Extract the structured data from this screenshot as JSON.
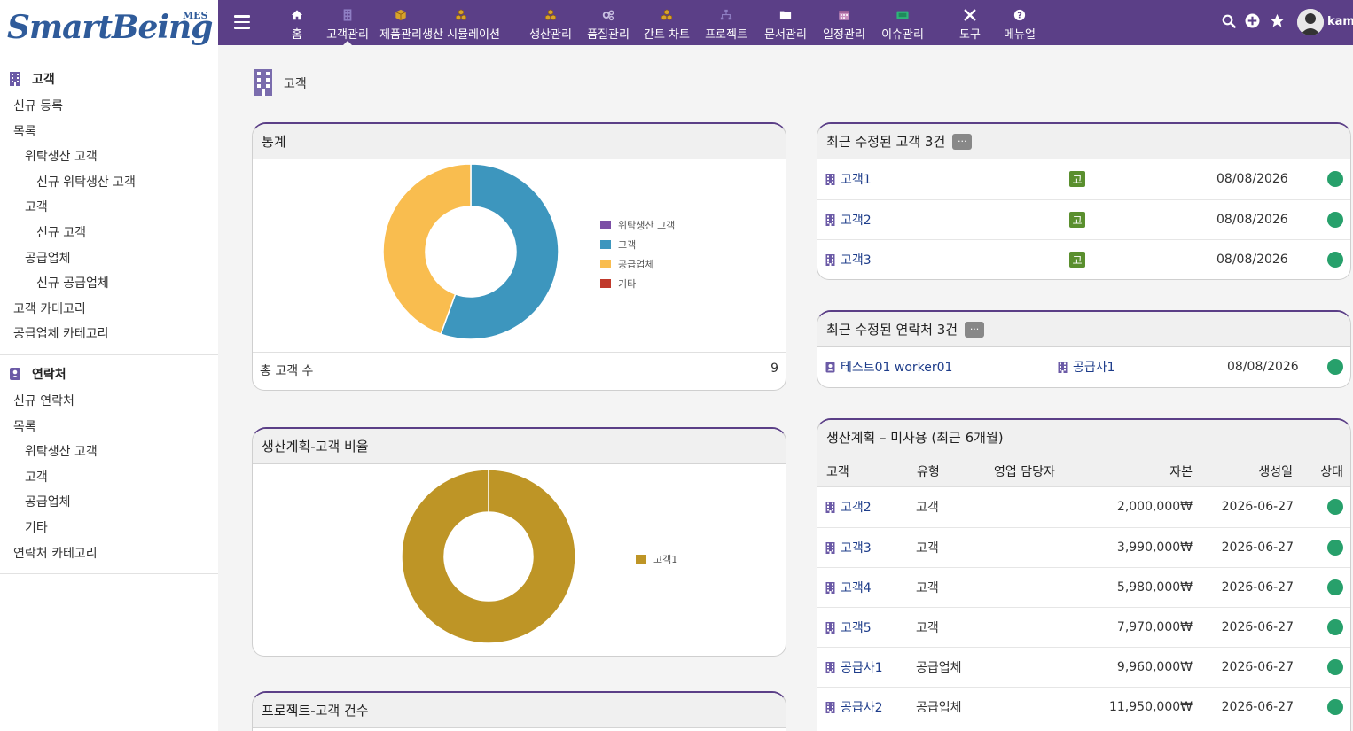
{
  "brand": {
    "logo": "SmartBeing",
    "sub": "MES"
  },
  "topnav": {
    "items": [
      {
        "label": "홈",
        "icon": "home-icon"
      },
      {
        "label": "고객관리",
        "icon": "building-icon"
      },
      {
        "label": "제품관리",
        "icon": "cube-icon"
      },
      {
        "label": "생산 시뮬레이션",
        "icon": "cubes-icon"
      },
      {
        "label": "생산관리",
        "icon": "cubes-icon"
      },
      {
        "label": "품질관리",
        "icon": "cogs-icon"
      },
      {
        "label": "간트 차트",
        "icon": "cubes-icon"
      },
      {
        "label": "프로젝트",
        "icon": "sitemap-icon"
      },
      {
        "label": "문서관리",
        "icon": "folder-icon"
      },
      {
        "label": "일정관리",
        "icon": "calendar-icon"
      },
      {
        "label": "이슈관리",
        "icon": "ticket-icon"
      },
      {
        "label": "도구",
        "icon": "wrench-icon"
      },
      {
        "label": "메뉴얼",
        "icon": "question-icon"
      }
    ],
    "active": "고객관리",
    "user": "kame"
  },
  "sidebar": {
    "customer_section": {
      "title": "고객",
      "items": [
        {
          "label": "신규 등록",
          "level": 0
        },
        {
          "label": "목록",
          "level": 0
        },
        {
          "label": "위탁생산 고객",
          "level": 1
        },
        {
          "label": "신규 위탁생산 고객",
          "level": 2
        },
        {
          "label": "고객",
          "level": 1
        },
        {
          "label": "신규 고객",
          "level": 2
        },
        {
          "label": "공급업체",
          "level": 1
        },
        {
          "label": "신규 공급업체",
          "level": 2
        },
        {
          "label": "고객 카테고리",
          "level": 0
        },
        {
          "label": "공급업체 카테고리",
          "level": 0
        }
      ]
    },
    "contact_section": {
      "title": "연락처",
      "items": [
        {
          "label": "신규 연락처",
          "level": 0
        },
        {
          "label": "목록",
          "level": 0
        },
        {
          "label": "위탁생산 고객",
          "level": 1
        },
        {
          "label": "고객",
          "level": 1
        },
        {
          "label": "공급업체",
          "level": 1
        },
        {
          "label": "기타",
          "level": 1
        },
        {
          "label": "연락처 카테고리",
          "level": 0
        }
      ]
    }
  },
  "breadcrumb": {
    "title": "고객"
  },
  "stats_card": {
    "title": "통계",
    "total_label": "총 고객 수",
    "total_value": "9",
    "legend": [
      {
        "label": "위탁생산 고객",
        "color": "#7b4ea5"
      },
      {
        "label": "고객",
        "color": "#3d96be"
      },
      {
        "label": "공급업체",
        "color": "#f9bd4f"
      },
      {
        "label": "기타",
        "color": "#c0392b"
      }
    ]
  },
  "ratio_card": {
    "title": "생산계획-고객 비율",
    "legend": [
      {
        "label": "고객1",
        "color": "#be9526"
      }
    ]
  },
  "project_card": {
    "title": "프로젝트-고객 건수"
  },
  "recent_customers": {
    "title": "최근 수정된 고객 3건",
    "more": "...",
    "rows": [
      {
        "name": "고객1",
        "badge": "고",
        "date": "08/08/2026"
      },
      {
        "name": "고객2",
        "badge": "고",
        "date": "08/08/2026"
      },
      {
        "name": "고객3",
        "badge": "고",
        "date": "08/08/2026"
      }
    ]
  },
  "recent_contacts": {
    "title": "최근 수정된 연락처 3건",
    "more": "...",
    "rows": [
      {
        "name": "테스트01 worker01",
        "company": "공급사1",
        "date": "08/08/2026"
      }
    ]
  },
  "unused_plans": {
    "title": "생산계획 – 미사용 (최근 6개월)",
    "headers": [
      "고객",
      "유형",
      "영업 담당자",
      "자본",
      "생성일",
      "상태"
    ],
    "rows": [
      {
        "name": "고객2",
        "type": "고객",
        "sales": "",
        "capital": "2,000,000₩",
        "date": "2026-06-27"
      },
      {
        "name": "고객3",
        "type": "고객",
        "sales": "",
        "capital": "3,990,000₩",
        "date": "2026-06-27"
      },
      {
        "name": "고객4",
        "type": "고객",
        "sales": "",
        "capital": "5,980,000₩",
        "date": "2026-06-27"
      },
      {
        "name": "고객5",
        "type": "고객",
        "sales": "",
        "capital": "7,970,000₩",
        "date": "2026-06-27"
      },
      {
        "name": "공급사1",
        "type": "공급업체",
        "sales": "",
        "capital": "9,960,000₩",
        "date": "2026-06-27"
      },
      {
        "name": "공급사2",
        "type": "공급업체",
        "sales": "",
        "capital": "11,950,000₩",
        "date": "2026-06-27"
      }
    ]
  },
  "chart_data": [
    {
      "type": "pie",
      "title": "통계",
      "categories": [
        "위탁생산 고객",
        "고객",
        "공급업체",
        "기타"
      ],
      "values": [
        0,
        5,
        4,
        0
      ],
      "colors": [
        "#7b4ea5",
        "#3d96be",
        "#f9bd4f",
        "#c0392b"
      ],
      "donut": true,
      "legend": "right"
    },
    {
      "type": "pie",
      "title": "생산계획-고객 비율",
      "categories": [
        "고객1"
      ],
      "values": [
        1
      ],
      "colors": [
        "#be9526"
      ],
      "donut": true,
      "legend": "right"
    }
  ]
}
